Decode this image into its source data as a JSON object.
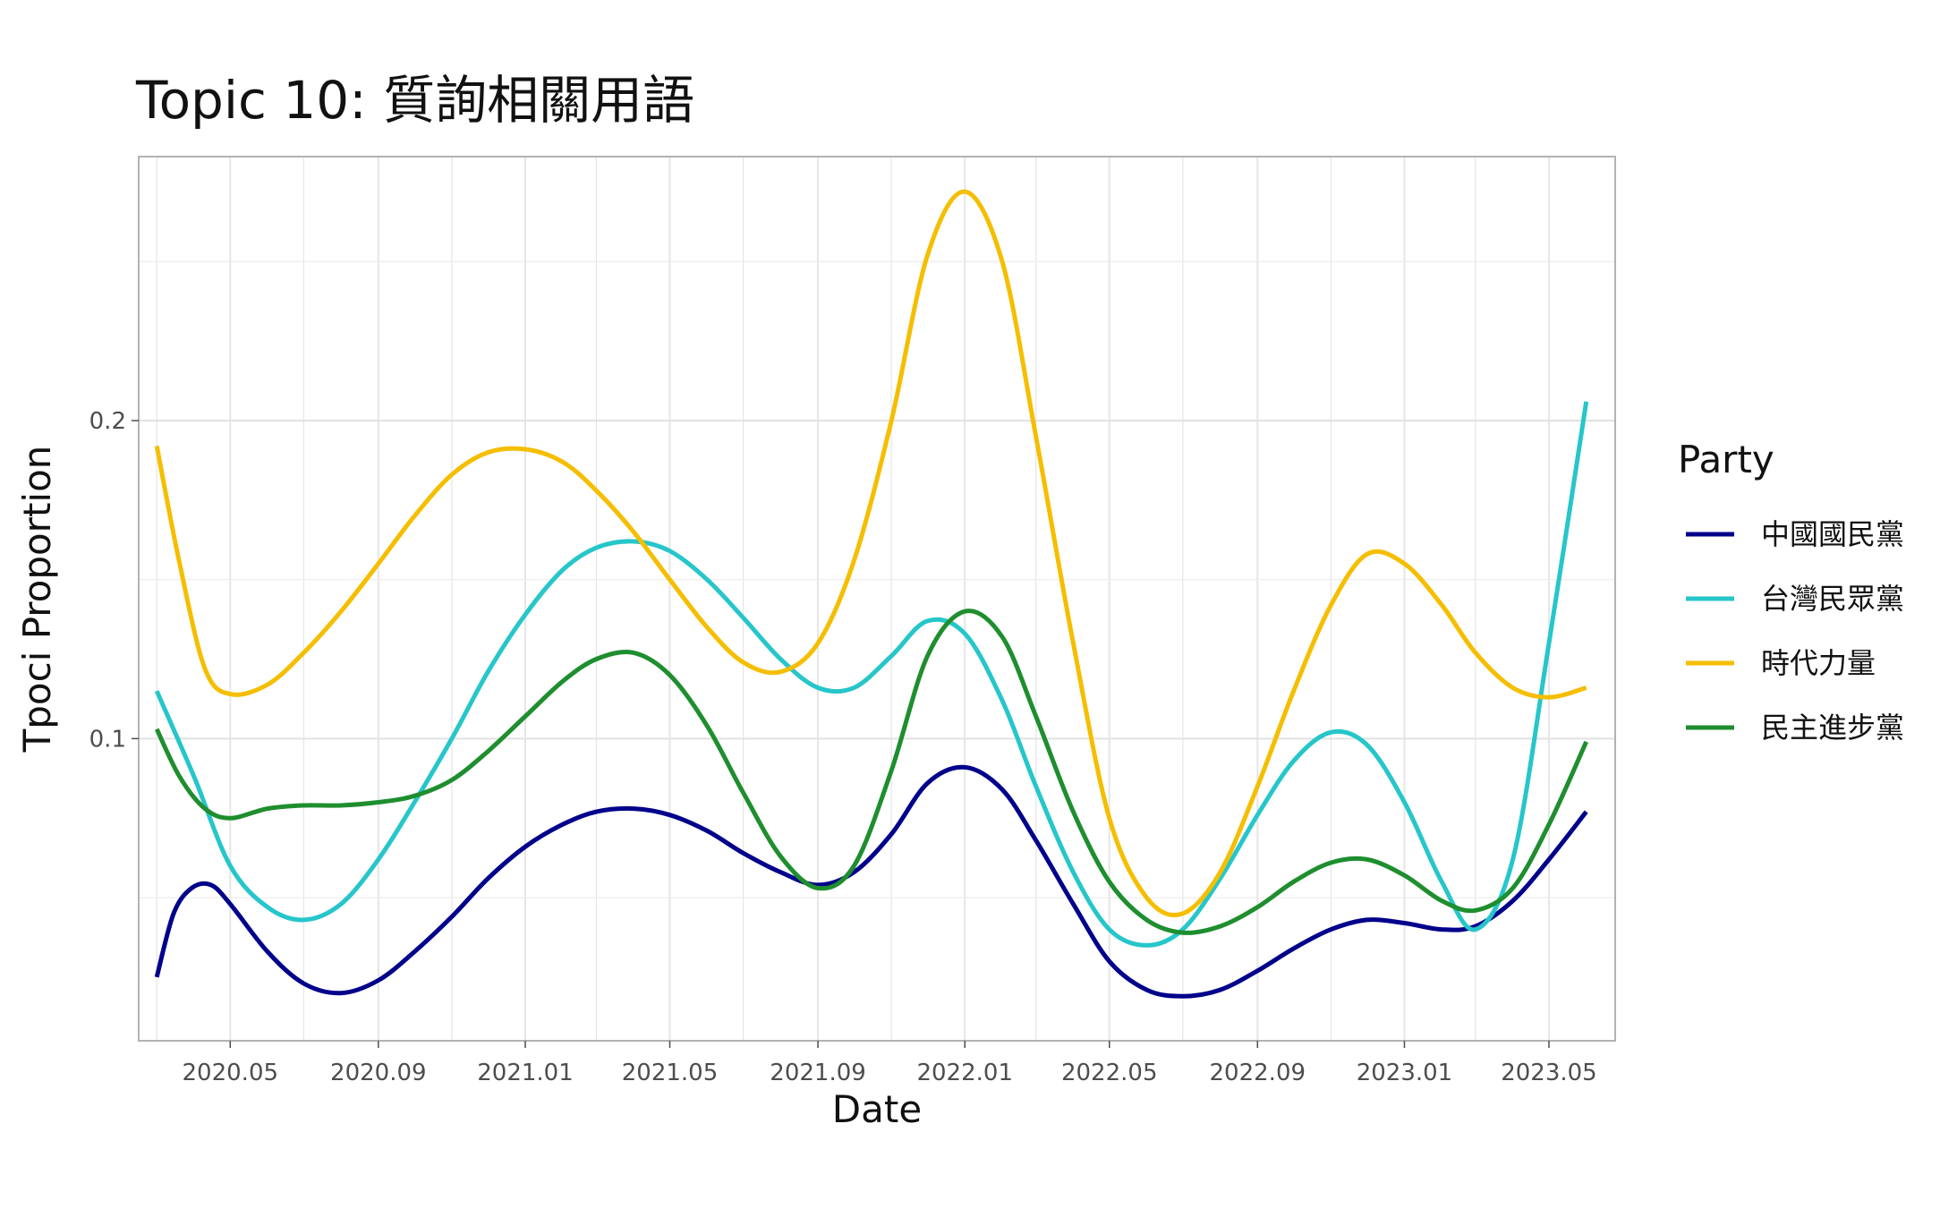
{
  "chart_data": {
    "type": "line",
    "title": "Topic 10: 質詢相關用語",
    "xlabel": "Date",
    "ylabel": "Tpoci Proportion",
    "x_range": [
      "2020-02-15",
      "2023-06-25"
    ],
    "ylim": [
      0.005,
      0.283
    ],
    "x_ticks": [
      "2020.05",
      "2020.09",
      "2021.01",
      "2021.05",
      "2021.09",
      "2022.01",
      "2022.05",
      "2022.09",
      "2023.01",
      "2023.05"
    ],
    "y_ticks": [
      "0.1",
      "0.2"
    ],
    "grid": true,
    "legend": {
      "title": "Party",
      "position": "right"
    },
    "series": [
      {
        "name": "中國國民黨",
        "color": "#00008B",
        "points": [
          [
            "2020-03-01",
            0.025
          ],
          [
            "2020-03-15",
            0.045
          ],
          [
            "2020-03-30",
            0.053
          ],
          [
            "2020-04-15",
            0.054
          ],
          [
            "2020-05-01",
            0.048
          ],
          [
            "2020-06-01",
            0.033
          ],
          [
            "2020-07-01",
            0.023
          ],
          [
            "2020-08-01",
            0.02
          ],
          [
            "2020-09-01",
            0.024
          ],
          [
            "2020-10-01",
            0.033
          ],
          [
            "2020-11-01",
            0.044
          ],
          [
            "2020-12-01",
            0.056
          ],
          [
            "2021-01-01",
            0.066
          ],
          [
            "2021-02-01",
            0.073
          ],
          [
            "2021-03-01",
            0.077
          ],
          [
            "2021-04-01",
            0.078
          ],
          [
            "2021-05-01",
            0.076
          ],
          [
            "2021-06-01",
            0.071
          ],
          [
            "2021-07-01",
            0.064
          ],
          [
            "2021-08-01",
            0.058
          ],
          [
            "2021-09-01",
            0.054
          ],
          [
            "2021-10-01",
            0.058
          ],
          [
            "2021-11-01",
            0.07
          ],
          [
            "2021-12-01",
            0.086
          ],
          [
            "2022-01-01",
            0.091
          ],
          [
            "2022-02-01",
            0.084
          ],
          [
            "2022-03-01",
            0.068
          ],
          [
            "2022-04-01",
            0.048
          ],
          [
            "2022-05-01",
            0.03
          ],
          [
            "2022-06-01",
            0.021
          ],
          [
            "2022-07-01",
            0.019
          ],
          [
            "2022-08-01",
            0.021
          ],
          [
            "2022-09-01",
            0.027
          ],
          [
            "2022-10-01",
            0.034
          ],
          [
            "2022-11-01",
            0.04
          ],
          [
            "2022-12-01",
            0.043
          ],
          [
            "2023-01-01",
            0.042
          ],
          [
            "2023-02-01",
            0.04
          ],
          [
            "2023-03-01",
            0.041
          ],
          [
            "2023-04-01",
            0.049
          ],
          [
            "2023-05-01",
            0.062
          ],
          [
            "2023-06-01",
            0.077
          ]
        ]
      },
      {
        "name": "台灣民眾黨",
        "color": "#26C6CA",
        "points": [
          [
            "2020-03-01",
            0.115
          ],
          [
            "2020-04-01",
            0.088
          ],
          [
            "2020-05-01",
            0.06
          ],
          [
            "2020-06-01",
            0.047
          ],
          [
            "2020-07-01",
            0.043
          ],
          [
            "2020-08-01",
            0.048
          ],
          [
            "2020-09-01",
            0.062
          ],
          [
            "2020-10-01",
            0.08
          ],
          [
            "2020-11-01",
            0.1
          ],
          [
            "2020-12-01",
            0.121
          ],
          [
            "2021-01-01",
            0.139
          ],
          [
            "2021-02-01",
            0.153
          ],
          [
            "2021-03-01",
            0.16
          ],
          [
            "2021-04-01",
            0.162
          ],
          [
            "2021-05-01",
            0.159
          ],
          [
            "2021-06-01",
            0.15
          ],
          [
            "2021-07-01",
            0.138
          ],
          [
            "2021-08-01",
            0.125
          ],
          [
            "2021-09-01",
            0.116
          ],
          [
            "2021-10-01",
            0.116
          ],
          [
            "2021-11-01",
            0.126
          ],
          [
            "2021-12-01",
            0.137
          ],
          [
            "2022-01-01",
            0.133
          ],
          [
            "2022-02-01",
            0.112
          ],
          [
            "2022-03-01",
            0.085
          ],
          [
            "2022-04-01",
            0.058
          ],
          [
            "2022-05-01",
            0.04
          ],
          [
            "2022-06-01",
            0.035
          ],
          [
            "2022-07-01",
            0.04
          ],
          [
            "2022-08-01",
            0.056
          ],
          [
            "2022-09-01",
            0.076
          ],
          [
            "2022-10-01",
            0.093
          ],
          [
            "2022-11-01",
            0.102
          ],
          [
            "2022-12-01",
            0.098
          ],
          [
            "2023-01-01",
            0.08
          ],
          [
            "2023-02-01",
            0.055
          ],
          [
            "2023-03-01",
            0.04
          ],
          [
            "2023-04-01",
            0.062
          ],
          [
            "2023-05-01",
            0.13
          ],
          [
            "2023-06-01",
            0.206
          ]
        ]
      },
      {
        "name": "時代力量",
        "color": "#F5BE00",
        "points": [
          [
            "2020-03-01",
            0.192
          ],
          [
            "2020-03-20",
            0.155
          ],
          [
            "2020-04-10",
            0.122
          ],
          [
            "2020-05-01",
            0.114
          ],
          [
            "2020-06-01",
            0.117
          ],
          [
            "2020-07-01",
            0.127
          ],
          [
            "2020-08-01",
            0.14
          ],
          [
            "2020-09-01",
            0.155
          ],
          [
            "2020-10-01",
            0.17
          ],
          [
            "2020-11-01",
            0.183
          ],
          [
            "2020-12-01",
            0.19
          ],
          [
            "2021-01-01",
            0.191
          ],
          [
            "2021-02-01",
            0.187
          ],
          [
            "2021-03-01",
            0.178
          ],
          [
            "2021-04-01",
            0.165
          ],
          [
            "2021-05-01",
            0.15
          ],
          [
            "2021-06-01",
            0.135
          ],
          [
            "2021-07-01",
            0.124
          ],
          [
            "2021-08-01",
            0.121
          ],
          [
            "2021-09-01",
            0.13
          ],
          [
            "2021-10-01",
            0.156
          ],
          [
            "2021-11-01",
            0.2
          ],
          [
            "2021-12-01",
            0.252
          ],
          [
            "2022-01-01",
            0.272
          ],
          [
            "2022-02-01",
            0.25
          ],
          [
            "2022-03-01",
            0.195
          ],
          [
            "2022-04-01",
            0.13
          ],
          [
            "2022-05-01",
            0.075
          ],
          [
            "2022-06-01",
            0.05
          ],
          [
            "2022-07-01",
            0.045
          ],
          [
            "2022-08-01",
            0.058
          ],
          [
            "2022-09-01",
            0.085
          ],
          [
            "2022-10-01",
            0.115
          ],
          [
            "2022-11-01",
            0.142
          ],
          [
            "2022-12-01",
            0.158
          ],
          [
            "2023-01-01",
            0.155
          ],
          [
            "2023-02-01",
            0.142
          ],
          [
            "2023-03-01",
            0.127
          ],
          [
            "2023-04-01",
            0.116
          ],
          [
            "2023-05-01",
            0.113
          ],
          [
            "2023-06-01",
            0.116
          ]
        ]
      },
      {
        "name": "民主進步黨",
        "color": "#1E8E2E",
        "points": [
          [
            "2020-03-01",
            0.103
          ],
          [
            "2020-03-20",
            0.088
          ],
          [
            "2020-04-10",
            0.078
          ],
          [
            "2020-05-01",
            0.075
          ],
          [
            "2020-06-01",
            0.078
          ],
          [
            "2020-07-01",
            0.079
          ],
          [
            "2020-08-01",
            0.079
          ],
          [
            "2020-09-01",
            0.08
          ],
          [
            "2020-10-01",
            0.082
          ],
          [
            "2020-11-01",
            0.087
          ],
          [
            "2020-12-01",
            0.096
          ],
          [
            "2021-01-01",
            0.107
          ],
          [
            "2021-02-01",
            0.118
          ],
          [
            "2021-03-01",
            0.125
          ],
          [
            "2021-04-01",
            0.127
          ],
          [
            "2021-05-01",
            0.12
          ],
          [
            "2021-06-01",
            0.104
          ],
          [
            "2021-07-01",
            0.083
          ],
          [
            "2021-08-01",
            0.063
          ],
          [
            "2021-09-01",
            0.053
          ],
          [
            "2021-10-01",
            0.06
          ],
          [
            "2021-11-01",
            0.09
          ],
          [
            "2021-12-01",
            0.126
          ],
          [
            "2022-01-01",
            0.14
          ],
          [
            "2022-02-01",
            0.132
          ],
          [
            "2022-03-01",
            0.107
          ],
          [
            "2022-04-01",
            0.077
          ],
          [
            "2022-05-01",
            0.055
          ],
          [
            "2022-06-01",
            0.043
          ],
          [
            "2022-07-01",
            0.039
          ],
          [
            "2022-08-01",
            0.041
          ],
          [
            "2022-09-01",
            0.047
          ],
          [
            "2022-10-01",
            0.055
          ],
          [
            "2022-11-01",
            0.061
          ],
          [
            "2022-12-01",
            0.062
          ],
          [
            "2023-01-01",
            0.057
          ],
          [
            "2023-02-01",
            0.049
          ],
          [
            "2023-03-01",
            0.046
          ],
          [
            "2023-04-01",
            0.053
          ],
          [
            "2023-05-01",
            0.073
          ],
          [
            "2023-06-01",
            0.099
          ]
        ]
      }
    ]
  }
}
